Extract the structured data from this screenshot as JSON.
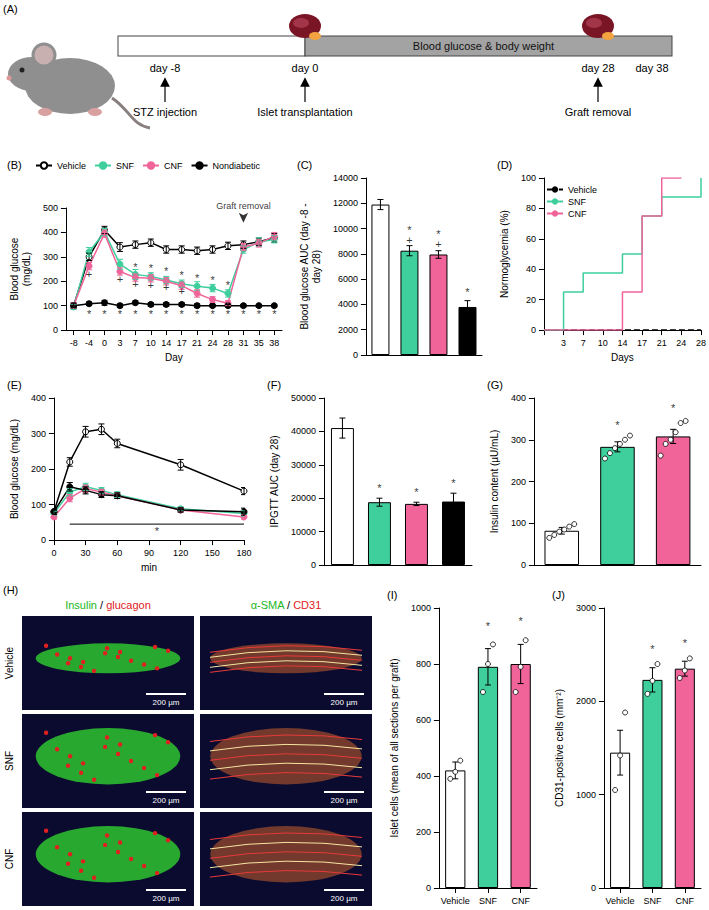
{
  "diagram": {
    "panel_label": "(A)",
    "bar_label": "Blood glucose & body weight",
    "timeline": [
      {
        "day": "day -8",
        "event": "STZ injection"
      },
      {
        "day": "day 0",
        "event": "Islet transplantation"
      },
      {
        "day": "day 28",
        "event": "Graft removal"
      },
      {
        "day": "day 38"
      }
    ]
  },
  "chart_data": [
    {
      "panel_label": "(B)",
      "type": "line",
      "xlabel": "Day",
      "ylabel": "Blood glucose (mg/dL)",
      "categories": [
        "-8",
        "-4",
        "0",
        "3",
        "7",
        "10",
        "14",
        "17",
        "21",
        "24",
        "28",
        "31",
        "35",
        "38"
      ],
      "ylim": [
        0,
        500
      ],
      "yticks": [
        0,
        100,
        200,
        300,
        400,
        500
      ],
      "grid": false,
      "legend": "top",
      "series": [
        {
          "name": "Vehicle",
          "color": "#ffffff",
          "marker": "circle",
          "values": [
            100,
            300,
            410,
            340,
            350,
            358,
            330,
            330,
            325,
            330,
            345,
            350,
            362,
            378
          ],
          "errors": [
            12,
            15,
            15,
            18,
            15,
            15,
            15,
            15,
            15,
            15,
            15,
            15,
            15,
            18
          ]
        },
        {
          "name": "SNF",
          "color": "#3ecf9c",
          "marker": "circle",
          "values": [
            95,
            320,
            402,
            270,
            228,
            220,
            205,
            190,
            180,
            172,
            150,
            330,
            360,
            372
          ],
          "errors": [
            10,
            18,
            15,
            20,
            20,
            15,
            15,
            15,
            18,
            15,
            15,
            15,
            18,
            15
          ]
        },
        {
          "name": "CNF",
          "color": "#f0649a",
          "marker": "circle",
          "values": [
            100,
            262,
            395,
            240,
            215,
            212,
            200,
            182,
            150,
            125,
            110,
            340,
            355,
            385
          ],
          "errors": [
            10,
            15,
            15,
            15,
            15,
            15,
            15,
            15,
            15,
            12,
            10,
            15,
            15,
            15
          ]
        },
        {
          "name": "Nondiabetic",
          "color": "#000000",
          "marker": "circle",
          "values": [
            100,
            108,
            112,
            100,
            112,
            105,
            105,
            105,
            100,
            100,
            100,
            100,
            100,
            100
          ],
          "errors": [
            8,
            8,
            10,
            8,
            8,
            8,
            8,
            8,
            8,
            6,
            6,
            6,
            6,
            6
          ]
        }
      ],
      "annotations": [
        {
          "x": "31",
          "y": 440,
          "text": "Graft removal",
          "marker": "arrow"
        },
        {
          "x": "-4",
          "y": 230,
          "text": "+"
        },
        {
          "x": "3",
          "y": 210,
          "text": "+"
        },
        {
          "x": "7",
          "y": 190,
          "text": "+"
        },
        {
          "x": "10",
          "y": 185,
          "text": "+"
        },
        {
          "x": "14",
          "y": 175,
          "text": "+"
        },
        {
          "x": "17",
          "y": 160,
          "text": "+"
        },
        {
          "x": "7",
          "y": 260,
          "text": "*"
        },
        {
          "x": "10",
          "y": 255,
          "text": "*"
        },
        {
          "x": "14",
          "y": 240,
          "text": "*"
        },
        {
          "x": "17",
          "y": 225,
          "text": "*"
        },
        {
          "x": "21",
          "y": 215,
          "text": "*"
        },
        {
          "x": "24",
          "y": 205,
          "text": "*"
        },
        {
          "x": "28",
          "y": 185,
          "text": "*"
        },
        {
          "x": "-4",
          "y": 65,
          "text": "*"
        },
        {
          "x": "0",
          "y": 65,
          "text": "*"
        },
        {
          "x": "3",
          "y": 65,
          "text": "*"
        },
        {
          "x": "7",
          "y": 65,
          "text": "*"
        },
        {
          "x": "10",
          "y": 65,
          "text": "*"
        },
        {
          "x": "14",
          "y": 65,
          "text": "*"
        },
        {
          "x": "17",
          "y": 65,
          "text": "*"
        },
        {
          "x": "21",
          "y": 65,
          "text": "*"
        },
        {
          "x": "24",
          "y": 65,
          "text": "*"
        },
        {
          "x": "28",
          "y": 65,
          "text": "*"
        },
        {
          "x": "31",
          "y": 65,
          "text": "*"
        },
        {
          "x": "35",
          "y": 65,
          "text": "*"
        },
        {
          "x": "38",
          "y": 65,
          "text": "*"
        }
      ]
    },
    {
      "panel_label": "(C)",
      "type": "bar",
      "ylabel": "Blood glucose AUC (day -8 - day 28)",
      "categories": [
        null,
        null,
        null,
        null
      ],
      "values": [
        11900,
        8250,
        7950,
        3800
      ],
      "errors": [
        400,
        400,
        300,
        500
      ],
      "colors": [
        "#ffffff",
        "#3ecf9c",
        "#f0649a",
        "#000000"
      ],
      "ylim": [
        0,
        14000
      ],
      "yticks": [
        0,
        2000,
        4000,
        6000,
        8000,
        10000,
        12000,
        14000
      ],
      "grid": false,
      "tick_labels": "y",
      "annotations": [
        {
          "x": 1,
          "y": 9100,
          "text": "+"
        },
        {
          "x": 1,
          "y": 9900,
          "text": "*"
        },
        {
          "x": 2,
          "y": 8800,
          "text": "+"
        },
        {
          "x": 2,
          "y": 9600,
          "text": "*"
        },
        {
          "x": 3,
          "y": 5000,
          "text": "*"
        }
      ]
    },
    {
      "panel_label": "(D)",
      "type": "step",
      "xlabel": "Days",
      "ylabel": "Normoglycemia (%)",
      "categories": [
        null,
        "3",
        "7",
        "10",
        "14",
        "17",
        "21",
        "24",
        "28"
      ],
      "ylim": [
        0,
        100
      ],
      "yticks": [
        0,
        20,
        40,
        60,
        80,
        100
      ],
      "grid": false,
      "legend": "top-left",
      "series": [
        {
          "name": "Vehicle",
          "color": "#000000",
          "line_style": "dashed",
          "values": [
            0,
            0,
            0,
            0,
            0,
            0,
            0,
            0,
            0
          ]
        },
        {
          "name": "SNF",
          "color": "#3ecf9c",
          "line_style": "solid",
          "values": [
            0,
            25,
            37.5,
            37.5,
            50,
            75,
            87.5,
            87.5,
            100
          ]
        },
        {
          "name": "CNF",
          "color": "#f0649a",
          "line_style": "solid",
          "values": [
            0,
            0,
            0,
            0,
            25,
            75,
            100,
            null,
            null
          ]
        }
      ]
    },
    {
      "panel_label": "(E)",
      "type": "line",
      "xlabel": "min",
      "ylabel": "Blood glucose (mg/dL)",
      "x": [
        0,
        15,
        30,
        45,
        60,
        120,
        180
      ],
      "xlim": [
        0,
        180
      ],
      "xticks": [
        0,
        30,
        60,
        90,
        120,
        150,
        180
      ],
      "ylim": [
        0,
        400
      ],
      "yticks": [
        0,
        100,
        200,
        300,
        400
      ],
      "grid": false,
      "series": [
        {
          "name": "Vehicle",
          "color": "#ffffff",
          "marker": "circle",
          "values": [
            80,
            220,
            305,
            312,
            272,
            212,
            138
          ],
          "errors": [
            8,
            12,
            15,
            15,
            12,
            15,
            10
          ]
        },
        {
          "name": "SNF",
          "color": "#3ecf9c",
          "marker": "circle",
          "values": [
            75,
            135,
            150,
            140,
            128,
            88,
            75
          ],
          "errors": [
            6,
            10,
            10,
            8,
            8,
            6,
            8
          ]
        },
        {
          "name": "CNF",
          "color": "#f0649a",
          "marker": "circle",
          "values": [
            65,
            118,
            145,
            135,
            125,
            85,
            65
          ],
          "errors": [
            6,
            10,
            10,
            8,
            8,
            6,
            6
          ]
        },
        {
          "name": "Nondiabetic",
          "color": "#000000",
          "marker": "circle",
          "values": [
            80,
            150,
            140,
            128,
            125,
            85,
            80
          ],
          "errors": [
            8,
            12,
            10,
            8,
            8,
            6,
            10
          ]
        }
      ],
      "annotations": [
        {
          "x": [
            15,
            180
          ],
          "y": 45,
          "text": "*"
        }
      ]
    },
    {
      "panel_label": "(F)",
      "type": "bar",
      "ylabel": "IPGTT AUC (day 28)",
      "categories": [
        null,
        null,
        null,
        null
      ],
      "values": [
        41000,
        18800,
        18300,
        19000
      ],
      "errors": [
        3000,
        1200,
        500,
        2500
      ],
      "colors": [
        "#ffffff",
        "#3ecf9c",
        "#f0649a",
        "#000000"
      ],
      "ylim": [
        0,
        50000
      ],
      "yticks": [
        0,
        10000,
        20000,
        30000,
        40000,
        50000
      ],
      "grid": false,
      "tick_labels": "y",
      "annotations": [
        {
          "x": 1,
          "y": 23000,
          "text": "*"
        },
        {
          "x": 2,
          "y": 22000,
          "text": "*"
        },
        {
          "x": 3,
          "y": 24500,
          "text": "*"
        }
      ]
    },
    {
      "panel_label": "(G)",
      "type": "bar",
      "ylabel": "Insulin content (µU/mL)",
      "categories": [
        null,
        null,
        null
      ],
      "values": [
        82,
        283,
        308
      ],
      "errors": [
        8,
        12,
        17
      ],
      "points": [
        [
          65,
          72,
          80,
          85,
          92,
          98
        ],
        [
          255,
          268,
          280,
          290,
          300,
          310
        ],
        [
          262,
          290,
          300,
          318,
          340,
          345
        ]
      ],
      "colors": [
        "#ffffff",
        "#3ecf9c",
        "#f0649a"
      ],
      "ylim": [
        0,
        400
      ],
      "yticks": [
        0,
        100,
        200,
        300,
        400
      ],
      "grid": false,
      "tick_labels": "y",
      "annotations": [
        {
          "x": 1,
          "y": 335,
          "text": "*"
        },
        {
          "x": 2,
          "y": 375,
          "text": "*"
        }
      ]
    },
    {
      "panel_label": "(I)",
      "type": "bar",
      "ylabel": "Islet cells (mean of all sections per graft)",
      "categories": [
        "Vehicle",
        "SNF",
        "CNF"
      ],
      "values": [
        420,
        790,
        800
      ],
      "errors": [
        30,
        65,
        70
      ],
      "points": [
        [
          390,
          415,
          455
        ],
        [
          700,
          800,
          870
        ],
        [
          700,
          790,
          885
        ]
      ],
      "colors": [
        "#ffffff",
        "#3ecf9c",
        "#f0649a"
      ],
      "ylim": [
        0,
        1000
      ],
      "yticks": [
        0,
        200,
        400,
        600,
        800,
        1000
      ],
      "grid": false,
      "annotations": [
        {
          "x": 1,
          "y": 935,
          "text": "*"
        },
        {
          "x": 2,
          "y": 955,
          "text": "*"
        }
      ]
    },
    {
      "panel_label": "(J)",
      "type": "bar",
      "ylabel": "CD31-positive cells (mm⁻²)",
      "categories": [
        "Vehicle",
        "SNF",
        "CNF"
      ],
      "values": [
        1450,
        2230,
        2350
      ],
      "errors": [
        240,
        130,
        80
      ],
      "points": [
        [
          1050,
          1420,
          1880
        ],
        [
          2080,
          2220,
          2400
        ],
        [
          2250,
          2330,
          2460
        ]
      ],
      "colors": [
        "#ffffff",
        "#3ecf9c",
        "#f0649a"
      ],
      "ylim": [
        0,
        3000
      ],
      "yticks": [
        0,
        1000,
        2000,
        3000
      ],
      "grid": false,
      "annotations": [
        {
          "x": 1,
          "y": 2560,
          "text": "*"
        },
        {
          "x": 2,
          "y": 2620,
          "text": "*"
        }
      ]
    }
  ],
  "images": {
    "panel_label": "(H)",
    "columns": [
      [
        {
          "text": "Insulin",
          "color": "#22b822"
        },
        {
          "text": " / ",
          "color": "#000000"
        },
        {
          "text": "glucagon",
          "color": "#e02020"
        }
      ],
      [
        {
          "text": "α-SMA",
          "color": "#22b822"
        },
        {
          "text": " / ",
          "color": "#000000"
        },
        {
          "text": "CD31",
          "color": "#e02020"
        }
      ]
    ],
    "rows": [
      "Vehicle",
      "SNF",
      "CNF"
    ],
    "scale_bar": "200 µm"
  }
}
